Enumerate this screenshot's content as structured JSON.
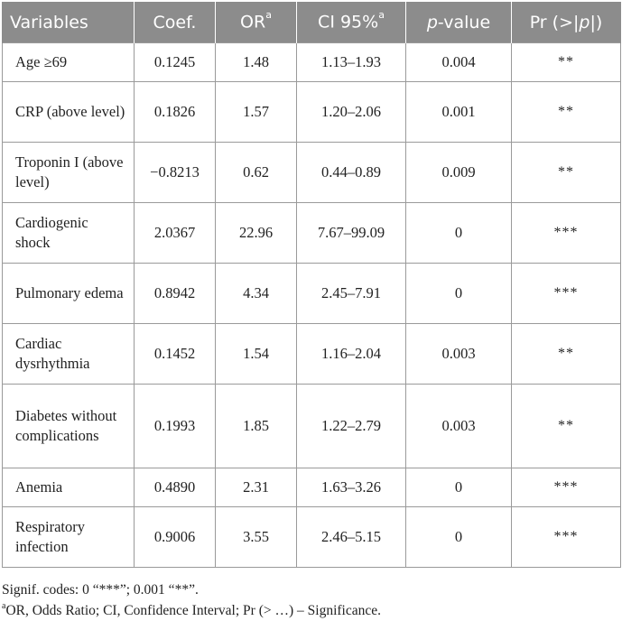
{
  "table": {
    "headers": {
      "variables": "Variables",
      "coef": "Coef.",
      "or": "OR",
      "or_sup": "a",
      "ci": "CI 95%",
      "ci_sup": "a",
      "pvalue_italic": "p",
      "pvalue_rest": "-value",
      "pr_prefix": "Pr (>|",
      "pr_italic": "p",
      "pr_suffix": "|)"
    },
    "rows": [
      {
        "variable": "Age ≥69",
        "coef": "0.1245",
        "or": "1.48",
        "ci": "1.13–1.93",
        "p": "0.004",
        "sig": "**"
      },
      {
        "variable": "CRP (above level)",
        "coef": "0.1826",
        "or": "1.57",
        "ci": "1.20–2.06",
        "p": "0.001",
        "sig": "**"
      },
      {
        "variable": "Troponin I (above level)",
        "coef": "−0.8213",
        "or": "0.62",
        "ci": "0.44–0.89",
        "p": "0.009",
        "sig": "**"
      },
      {
        "variable": "Cardiogenic shock",
        "coef": "2.0367",
        "or": "22.96",
        "ci": "7.67–99.09",
        "p": "0",
        "sig": "***"
      },
      {
        "variable": "Pulmonary edema",
        "coef": "0.8942",
        "or": "4.34",
        "ci": "2.45–7.91",
        "p": "0",
        "sig": "***"
      },
      {
        "variable": "Cardiac dysrhythmia",
        "coef": "0.1452",
        "or": "1.54",
        "ci": "1.16–2.04",
        "p": "0.003",
        "sig": "**"
      },
      {
        "variable": "Diabetes without complications",
        "coef": "0.1993",
        "or": "1.85",
        "ci": "1.22–2.79",
        "p": "0.003",
        "sig": "**"
      },
      {
        "variable": "Anemia",
        "coef": "0.4890",
        "or": "2.31",
        "ci": "1.63–3.26",
        "p": "0",
        "sig": "***"
      },
      {
        "variable": "Respiratory infection",
        "coef": "0.9006",
        "or": "3.55",
        "ci": "2.46–5.15",
        "p": "0",
        "sig": "***"
      }
    ]
  },
  "footnotes": {
    "signif": "Signif. codes: 0 “***”; 0.001 “**”.",
    "marker": "a",
    "abbrev": "OR, Odds Ratio; CI, Confidence Interval; Pr (> …) – Significance."
  }
}
